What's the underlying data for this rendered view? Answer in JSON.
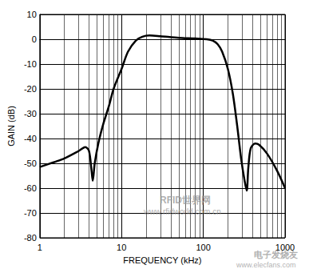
{
  "chart_data": {
    "type": "line",
    "x_label": "FREQUENCY (kHz)",
    "y_label": "GAIN (dB)",
    "x": [
      1,
      1.5,
      2,
      3,
      3.6,
      4,
      4.3,
      4.45,
      4.7,
      5.2,
      6,
      7,
      8,
      10,
      12,
      15,
      18,
      22,
      30,
      50,
      80,
      110,
      130,
      150,
      170,
      200,
      230,
      260,
      290,
      320,
      340,
      355,
      380,
      430,
      480,
      600,
      800,
      1000
    ],
    "values": [
      -51.5,
      -49.5,
      -48,
      -45,
      -43.5,
      -45,
      -53,
      -57,
      -50,
      -42,
      -34,
      -27,
      -20,
      -12,
      -5,
      -0.5,
      1,
      1.5,
      1.2,
      0.6,
      0.3,
      0,
      -0.5,
      -2,
      -5,
      -12,
      -22,
      -35,
      -48,
      -57,
      -61,
      -52,
      -44,
      -42,
      -42.5,
      -46,
      -53,
      -60
    ],
    "color": "#000000",
    "log": "x",
    "xlim": [
      1,
      1000
    ],
    "xticks": [
      1,
      10,
      100,
      1000
    ],
    "ylim": [
      -80,
      10
    ],
    "yticks": [
      -80,
      -70,
      -60,
      -50,
      -40,
      -30,
      -20,
      -10,
      0,
      10
    ],
    "grid": true,
    "annotations": [
      "RFID世界网",
      "www.rfidworld.com.cn",
      "电子发烧友",
      "www.elecfans.com"
    ]
  }
}
